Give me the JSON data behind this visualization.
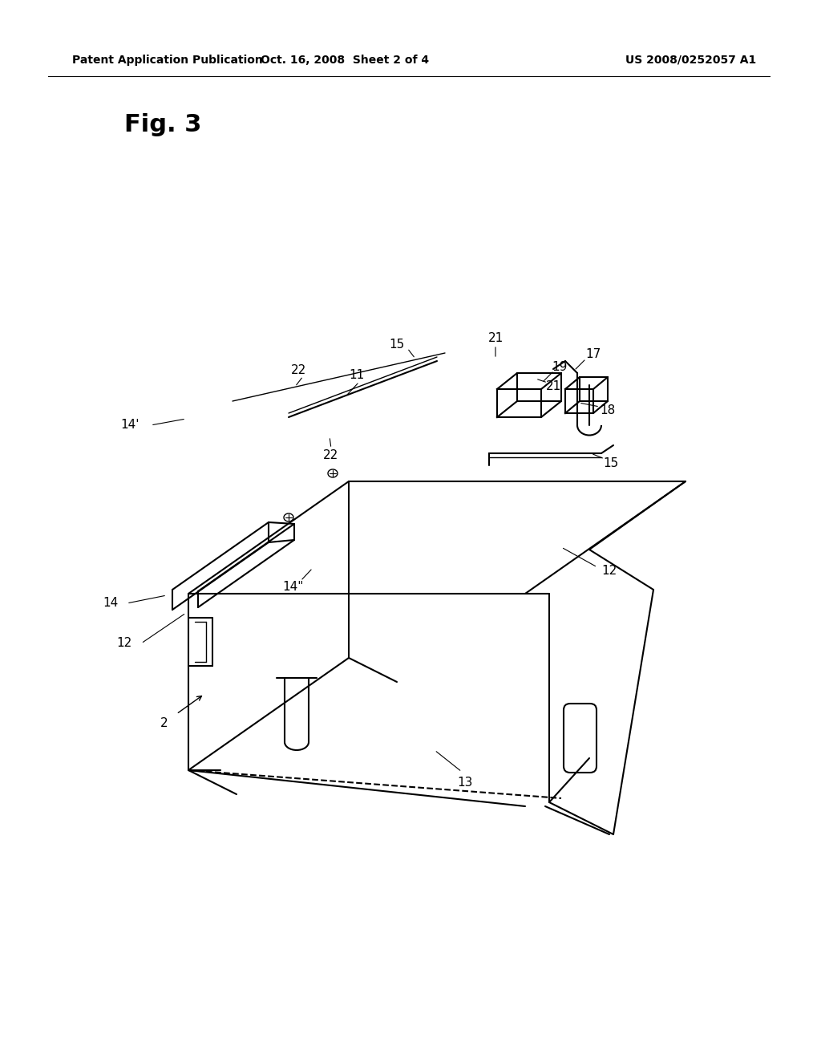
{
  "header_left": "Patent Application Publication",
  "header_center": "Oct. 16, 2008  Sheet 2 of 4",
  "header_right": "US 2008/0252057 A1",
  "fig_label": "Fig. 3",
  "background_color": "#ffffff",
  "line_color": "#000000",
  "label_color": "#000000",
  "header_fontsize": 10,
  "fig_label_fontsize": 22,
  "annotation_fontsize": 11
}
